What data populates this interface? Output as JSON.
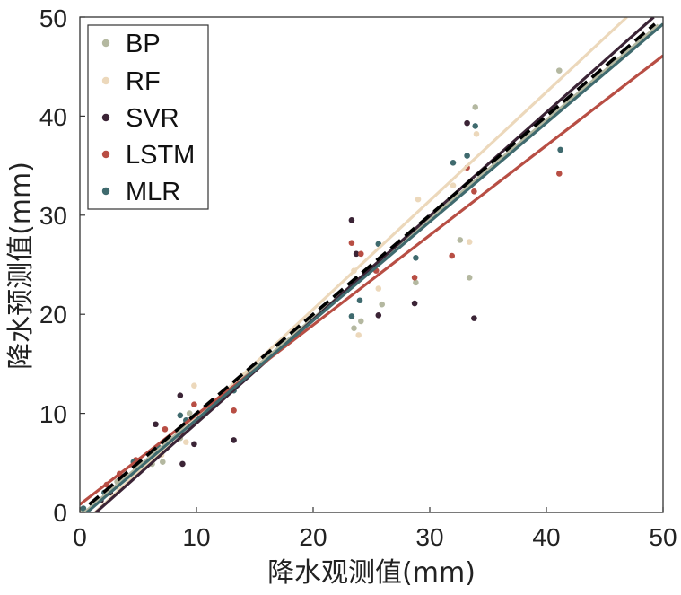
{
  "chart_data": {
    "type": "scatter",
    "xlabel": "降水观测值(mm)",
    "ylabel": "降水预测值(mm)",
    "xlim": [
      0,
      50
    ],
    "ylim": [
      0,
      50
    ],
    "xticks": [
      "0",
      "10",
      "20",
      "30",
      "40",
      "50"
    ],
    "yticks": [
      "0",
      "10",
      "20",
      "30",
      "40",
      "50"
    ],
    "grid": false,
    "legend_position": "top-left",
    "reference_line": {
      "style": "dashed",
      "color": "#000000",
      "x": [
        0.8,
        49.3
      ],
      "y": [
        0.8,
        49.3
      ]
    },
    "series": [
      {
        "name": "BP",
        "color": "#b4b8a0",
        "points": [
          [
            0.2,
            0.3
          ],
          [
            2.6,
            2.2
          ],
          [
            3.2,
            3.1
          ],
          [
            4.8,
            3.8
          ],
          [
            6.2,
            4.9
          ],
          [
            7.1,
            5.1
          ],
          [
            8.6,
            7.5
          ],
          [
            8.9,
            8.6
          ],
          [
            9.4,
            10.0
          ],
          [
            23.5,
            18.6
          ],
          [
            24.1,
            19.3
          ],
          [
            25.9,
            21.0
          ],
          [
            28.8,
            23.2
          ],
          [
            32.6,
            27.5
          ],
          [
            33.4,
            23.7
          ],
          [
            33.9,
            40.9
          ],
          [
            41.1,
            44.6
          ]
        ],
        "fit": {
          "x": [
            0,
            49.6
          ],
          "y": [
            -0.4,
            49.2
          ]
        }
      },
      {
        "name": "RF",
        "color": "#ecd8bb",
        "points": [
          [
            3.4,
            2.4
          ],
          [
            4.9,
            4.0
          ],
          [
            7.0,
            5.8
          ],
          [
            9.1,
            7.1
          ],
          [
            9.8,
            12.8
          ],
          [
            23.5,
            24.4
          ],
          [
            23.9,
            17.9
          ],
          [
            25.6,
            22.6
          ],
          [
            29.0,
            31.6
          ],
          [
            32.0,
            33.0
          ],
          [
            33.4,
            27.3
          ],
          [
            34.0,
            38.2
          ]
        ],
        "fit": {
          "x": [
            1.3,
            46.9
          ],
          "y": [
            0,
            50.0
          ]
        }
      },
      {
        "name": "SVR",
        "color": "#3b2436",
        "points": [
          [
            1.8,
            1.2
          ],
          [
            2.6,
            2.0
          ],
          [
            4.8,
            5.0
          ],
          [
            6.5,
            8.9
          ],
          [
            8.6,
            11.8
          ],
          [
            8.8,
            4.9
          ],
          [
            9.8,
            6.9
          ],
          [
            13.2,
            7.3
          ],
          [
            23.3,
            29.5
          ],
          [
            23.7,
            26.1
          ],
          [
            25.6,
            19.9
          ],
          [
            28.7,
            21.1
          ],
          [
            33.2,
            39.3
          ],
          [
            33.8,
            19.6
          ]
        ],
        "fit": {
          "x": [
            1.0,
            49.2
          ],
          "y": [
            -0.4,
            50.0
          ]
        }
      },
      {
        "name": "LSTM",
        "color": "#b84e44",
        "points": [
          [
            2.3,
            2.8
          ],
          [
            3.4,
            3.9
          ],
          [
            4.8,
            5.3
          ],
          [
            7.3,
            8.4
          ],
          [
            8.7,
            8.1
          ],
          [
            9.8,
            10.9
          ],
          [
            13.2,
            10.3
          ],
          [
            23.3,
            27.2
          ],
          [
            24.1,
            26.1
          ],
          [
            25.4,
            24.4
          ],
          [
            28.7,
            23.7
          ],
          [
            31.9,
            25.9
          ],
          [
            33.2,
            34.8
          ],
          [
            33.8,
            32.4
          ],
          [
            41.1,
            34.2
          ]
        ],
        "fit": {
          "x": [
            0,
            50.0
          ],
          "y": [
            0.8,
            46.1
          ]
        }
      },
      {
        "name": "MLR",
        "color": "#3f6a6e",
        "points": [
          [
            0.3,
            0.4
          ],
          [
            2.1,
            2.0
          ],
          [
            4.6,
            5.1
          ],
          [
            6.7,
            6.6
          ],
          [
            8.6,
            9.8
          ],
          [
            9.1,
            9.3
          ],
          [
            13.2,
            12.3
          ],
          [
            23.3,
            19.8
          ],
          [
            24.0,
            21.4
          ],
          [
            25.6,
            27.1
          ],
          [
            28.8,
            25.7
          ],
          [
            32.0,
            35.3
          ],
          [
            33.2,
            36.0
          ],
          [
            33.9,
            39.0
          ],
          [
            41.2,
            36.6
          ]
        ],
        "fit": {
          "x": [
            0,
            50.0
          ],
          "y": [
            -0.6,
            49.3
          ]
        }
      }
    ]
  }
}
